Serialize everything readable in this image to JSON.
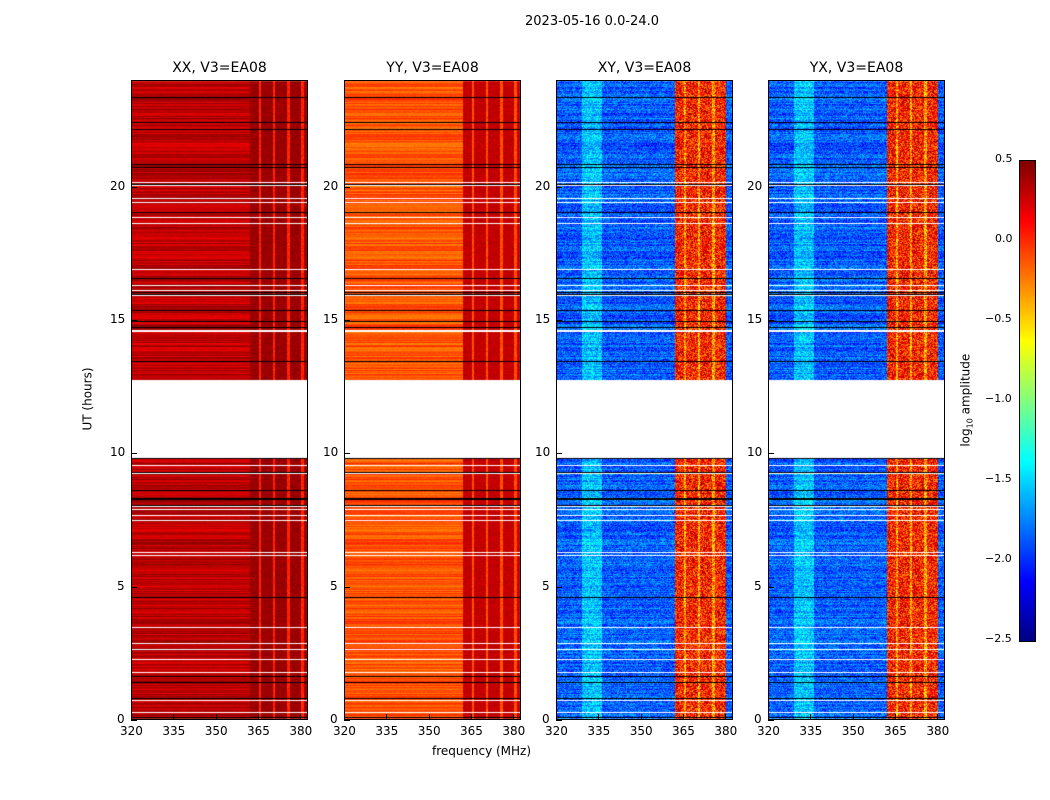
{
  "chart_data": {
    "type": "heatmap",
    "title": "2023-05-16 0.0-24.0",
    "xlabel": "frequency (MHz)",
    "ylabel": "UT (hours)",
    "xlim": [
      320,
      382.7
    ],
    "ylim": [
      0,
      24
    ],
    "xticks": [
      "320",
      "335",
      "350",
      "365",
      "380"
    ],
    "xtick_values": [
      320,
      335,
      350,
      365,
      380
    ],
    "yticks": [
      "0",
      "5",
      "10",
      "15",
      "20"
    ],
    "ytick_values": [
      0,
      5,
      10,
      15,
      20
    ],
    "no_data_hours": [
      9.85,
      12.75
    ],
    "panels": [
      {
        "title": "XX, V3=EA08",
        "base": 0.32,
        "band_value": 0.42,
        "band_mhz": [
          362,
          382
        ]
      },
      {
        "title": "YY, V3=EA08",
        "base": -0.12,
        "band_value": 0.3,
        "band_mhz": [
          362,
          382
        ]
      },
      {
        "title": "XY, V3=EA08",
        "base": -1.85,
        "band_value": 0.05,
        "band_mhz": [
          362,
          380
        ]
      },
      {
        "title": "YX, V3=EA08",
        "base": -1.85,
        "band_value": 0.05,
        "band_mhz": [
          362,
          380
        ]
      }
    ],
    "colorbar": {
      "label": "log10 amplitude",
      "label_main": "log",
      "label_sub": "10",
      "label_rest": " amplitude",
      "min": -2.5,
      "max": 0.5,
      "ticks": [
        "0.5",
        "0.0",
        "−0.5",
        "−1.0",
        "−1.5",
        "−2.0",
        "−2.5"
      ],
      "tick_values": [
        0.5,
        0,
        -0.5,
        -1,
        -1.5,
        -2,
        -2.5
      ],
      "colormap": "jet"
    }
  }
}
